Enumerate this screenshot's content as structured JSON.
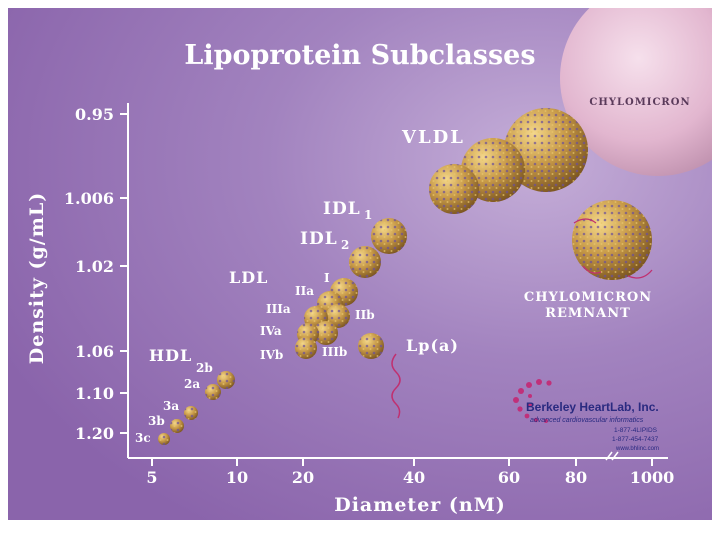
{
  "title": "Lipoprotein Subclasses",
  "y_axis": {
    "label": "Density (g/mL)",
    "ticks": [
      "0.95",
      "1.006",
      "1.02",
      "1.06",
      "1.10",
      "1.20"
    ]
  },
  "x_axis": {
    "label": "Diameter (nM)",
    "ticks": [
      "5",
      "10",
      "20",
      "40",
      "60",
      "80",
      "1000"
    ]
  },
  "class_labels": {
    "vldl": "VLDL",
    "idl1_main": "IDL",
    "idl1_sub": "1",
    "idl2_main": "IDL",
    "idl2_sub": "2",
    "ldl": "LDL",
    "hdl": "HDL",
    "lpa": "Lp(a)",
    "chylomicron": "CHYLOMICRON",
    "remnant_line1": "CHYLOMICRON",
    "remnant_line2": "REMNANT"
  },
  "ldl_subclasses": {
    "i": "I",
    "iia": "IIa",
    "iib": "IIb",
    "iiia": "IIIa",
    "iiib": "IIIb",
    "iva": "IVa",
    "ivb": "IVb"
  },
  "hdl_subclasses": {
    "h2b": "2b",
    "h2a": "2a",
    "h3a": "3a",
    "h3b": "3b",
    "h3c": "3c"
  },
  "logo": {
    "name": "Berkeley HeartLab, Inc.",
    "tagline": "advanced cardiovascular informatics",
    "phone1": "1-877-4LIPIDS",
    "phone2": "1-877-454-7437",
    "url": "www.bhlinc.com"
  },
  "colors": {
    "background": "#9b78b8",
    "particle": "#c89a48",
    "particle_dots": "#6a4f9a",
    "text": "#ffffff",
    "chylomicron": "#e6bfd6",
    "logo_accent": "#c0307a"
  }
}
